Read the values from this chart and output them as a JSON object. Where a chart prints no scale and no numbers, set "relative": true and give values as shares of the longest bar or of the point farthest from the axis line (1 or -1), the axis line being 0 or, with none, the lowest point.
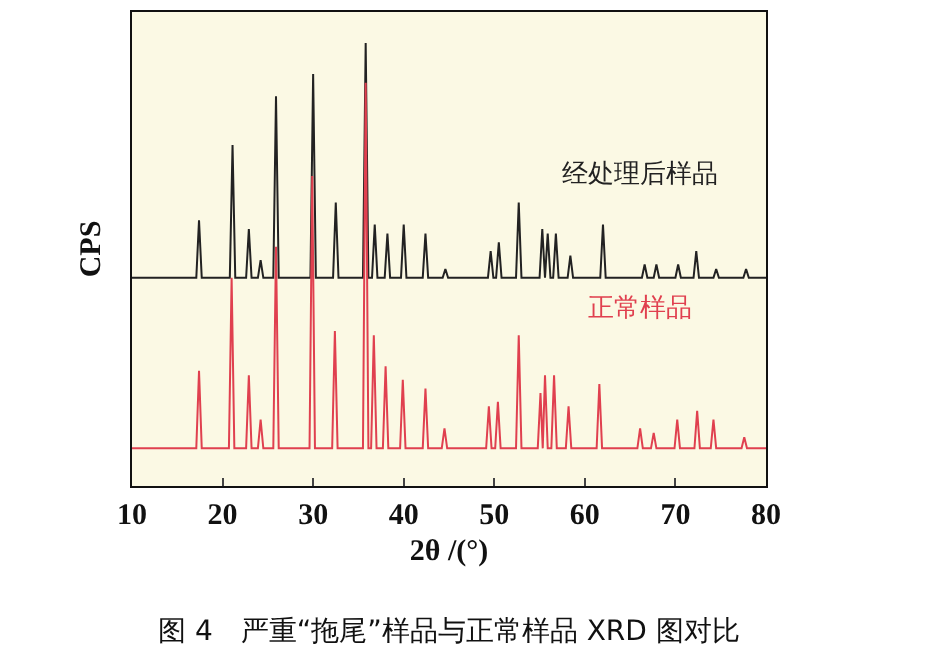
{
  "chart_data": {
    "type": "line",
    "title": "图 4　严重“拖尾”样品与正常样品 XRD 图对比",
    "xlabel": "2θ /(°)",
    "ylabel": "CPS",
    "relative": true,
    "xlim": [
      10,
      80
    ],
    "xticks": [
      10,
      20,
      30,
      40,
      50,
      60,
      70,
      80
    ],
    "grid": false,
    "legend": false,
    "marker": "none",
    "line_style": "solid",
    "series": [
      {
        "name": "经处理后样品",
        "color": "#222222",
        "x": [
          10,
          17.1,
          17.4,
          17.7,
          20.8,
          21.1,
          21.4,
          22.6,
          22.9,
          23.2,
          23.9,
          24.2,
          24.5,
          25.6,
          25.9,
          26.2,
          29.7,
          30.0,
          30.3,
          32.2,
          32.5,
          32.8,
          35.5,
          35.8,
          36.1,
          36.5,
          36.8,
          37.1,
          37.9,
          38.2,
          38.5,
          39.7,
          40.0,
          40.3,
          42.1,
          42.4,
          42.7,
          44.3,
          44.6,
          44.9,
          49.3,
          49.6,
          49.9,
          50.2,
          50.5,
          50.8,
          52.4,
          52.7,
          53.0,
          55.0,
          55.3,
          55.6,
          55.9,
          56.2,
          56.5,
          56.8,
          57.1,
          58.1,
          58.4,
          58.7,
          61.7,
          62.0,
          62.3,
          66.3,
          66.6,
          66.9,
          67.6,
          67.9,
          68.2,
          70.0,
          70.3,
          70.6,
          72.0,
          72.3,
          72.6,
          74.2,
          74.5,
          74.8,
          77.5,
          77.8,
          78.1,
          80
        ],
        "values": [
          0.47,
          0.47,
          0.6,
          0.47,
          0.47,
          0.77,
          0.47,
          0.47,
          0.58,
          0.47,
          0.47,
          0.51,
          0.47,
          0.47,
          0.88,
          0.47,
          0.47,
          0.93,
          0.47,
          0.47,
          0.64,
          0.47,
          0.47,
          1,
          0.47,
          0.47,
          0.59,
          0.47,
          0.47,
          0.57,
          0.47,
          0.47,
          0.59,
          0.47,
          0.47,
          0.57,
          0.47,
          0.47,
          0.49,
          0.47,
          0.47,
          0.53,
          0.47,
          0.47,
          0.55,
          0.47,
          0.47,
          0.64,
          0.47,
          0.47,
          0.58,
          0.47,
          0.57,
          0.47,
          0.47,
          0.57,
          0.47,
          0.47,
          0.52,
          0.47,
          0.47,
          0.59,
          0.47,
          0.47,
          0.5,
          0.47,
          0.47,
          0.5,
          0.47,
          0.47,
          0.5,
          0.47,
          0.47,
          0.53,
          0.47,
          0.47,
          0.49,
          0.47,
          0.47,
          0.49,
          0.47,
          0.47
        ]
      },
      {
        "name": "正常样品",
        "color": "#e0404f",
        "x": [
          10,
          17.1,
          17.4,
          17.7,
          20.7,
          21.0,
          21.3,
          22.6,
          22.9,
          23.2,
          23.9,
          24.2,
          24.5,
          25.6,
          25.9,
          26.2,
          29.6,
          29.9,
          30.2,
          32.1,
          32.4,
          32.7,
          35.5,
          35.8,
          36.1,
          36.4,
          36.7,
          37.0,
          37.7,
          38.0,
          38.3,
          39.6,
          39.9,
          40.2,
          42.1,
          42.4,
          42.7,
          44.2,
          44.5,
          44.8,
          49.1,
          49.4,
          49.7,
          50.1,
          50.4,
          50.7,
          52.4,
          52.7,
          53.0,
          54.8,
          55.1,
          55.35,
          55.6,
          55.9,
          56.3,
          56.6,
          56.9,
          57.9,
          58.2,
          58.5,
          61.3,
          61.6,
          61.9,
          65.8,
          66.1,
          66.4,
          67.3,
          67.6,
          67.9,
          69.9,
          70.2,
          70.5,
          72.1,
          72.4,
          72.7,
          73.9,
          74.2,
          74.5,
          77.3,
          77.6,
          77.9,
          80
        ],
        "values": [
          0.085,
          0.085,
          0.26,
          0.085,
          0.085,
          0.47,
          0.085,
          0.085,
          0.25,
          0.085,
          0.085,
          0.15,
          0.085,
          0.085,
          0.54,
          0.085,
          0.085,
          0.7,
          0.085,
          0.085,
          0.35,
          0.085,
          0.085,
          0.91,
          0.085,
          0.085,
          0.34,
          0.085,
          0.085,
          0.27,
          0.085,
          0.085,
          0.24,
          0.085,
          0.085,
          0.22,
          0.085,
          0.085,
          0.13,
          0.085,
          0.085,
          0.18,
          0.085,
          0.085,
          0.19,
          0.085,
          0.085,
          0.34,
          0.085,
          0.085,
          0.21,
          0.085,
          0.25,
          0.085,
          0.085,
          0.25,
          0.085,
          0.085,
          0.18,
          0.085,
          0.085,
          0.23,
          0.085,
          0.085,
          0.13,
          0.085,
          0.085,
          0.12,
          0.085,
          0.085,
          0.15,
          0.085,
          0.085,
          0.17,
          0.085,
          0.085,
          0.15,
          0.085,
          0.085,
          0.11,
          0.085,
          0.085
        ]
      }
    ]
  }
}
